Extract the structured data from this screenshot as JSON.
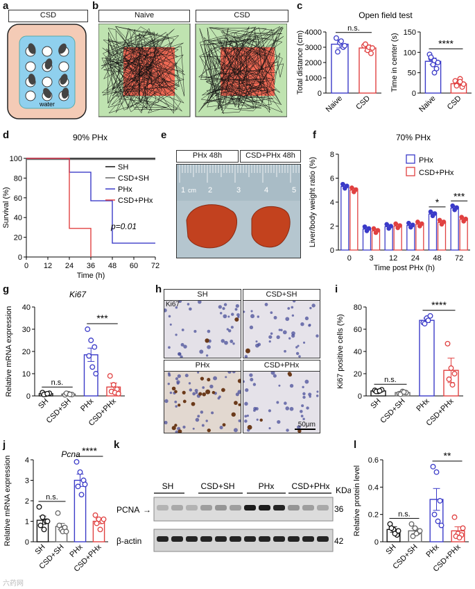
{
  "letters": {
    "a": "a",
    "b": "b",
    "c": "c",
    "d": "d",
    "e": "e",
    "f": "f",
    "g": "g",
    "h": "h",
    "i": "i",
    "j": "j",
    "k": "k",
    "l": "l"
  },
  "panel_a": {
    "header": "CSD",
    "water_label": "water"
  },
  "panel_b": {
    "headers": [
      "Naive",
      "CSD"
    ]
  },
  "panel_e": {
    "headers": [
      "PHx 48h",
      "CSD+PHx 48h"
    ],
    "ruler_labels": [
      "1",
      "2",
      "3",
      "4",
      "5"
    ],
    "ruler_unit": "cm"
  },
  "panel_h": {
    "headers": [
      "SH",
      "CSD+SH",
      "PHx",
      "CSD+PHx"
    ],
    "marker_label": "Ki67",
    "scale_bar": "50μm"
  },
  "panel_k": {
    "groups": [
      "SH",
      "CSD+SH",
      "PHx",
      "CSD+PHx"
    ],
    "rows": [
      "PCNA",
      "β-actin"
    ],
    "kda_label": "KDa",
    "kda_values": [
      "36",
      "42"
    ]
  },
  "watermark": "六药网",
  "chart_data": [
    {
      "id": "c_left",
      "type": "bar",
      "title": "Open field test",
      "categories": [
        "Naive",
        "CSD"
      ],
      "values": [
        3200,
        2950
      ],
      "errors": [
        250,
        200
      ],
      "points": [
        [
          3600,
          3300,
          3000,
          2700,
          3400,
          3100
        ],
        [
          3100,
          2800,
          2600,
          3200,
          3000,
          2950
        ]
      ],
      "ylabel": "Total distance (cm)",
      "ylim": [
        0,
        4000
      ],
      "yticks": [
        0,
        1000,
        2000,
        3000,
        4000
      ],
      "sig": "n.s."
    },
    {
      "id": "c_right",
      "type": "bar",
      "categories": [
        "Naive",
        "CSD"
      ],
      "values": [
        78,
        23
      ],
      "errors": [
        8,
        4
      ],
      "points": [
        [
          95,
          70,
          60,
          85,
          80,
          75,
          88,
          50
        ],
        [
          30,
          25,
          15,
          20,
          35,
          22,
          18,
          28
        ]
      ],
      "ylabel": "Time in center (s)",
      "ylim": [
        0,
        150
      ],
      "yticks": [
        0,
        50,
        100,
        150
      ],
      "sig": "****"
    },
    {
      "id": "d",
      "type": "line",
      "title": "90% PHx",
      "xlabel": "Time (h)",
      "ylabel": "Survival (%)",
      "xlim": [
        0,
        72
      ],
      "ylim": [
        0,
        100
      ],
      "xticks": [
        0,
        12,
        24,
        36,
        48,
        60,
        72
      ],
      "yticks": [
        0,
        20,
        40,
        60,
        80,
        100
      ],
      "series": [
        {
          "name": "SH",
          "color": "#111111",
          "steps": [
            [
              0,
              100
            ],
            [
              72,
              100
            ]
          ]
        },
        {
          "name": "CSD+SH",
          "color": "#666666",
          "steps": [
            [
              0,
              100
            ],
            [
              72,
              100
            ]
          ]
        },
        {
          "name": "PHx",
          "color": "#3a3ac8",
          "steps": [
            [
              0,
              100
            ],
            [
              24,
              100
            ],
            [
              24,
              86
            ],
            [
              36,
              86
            ],
            [
              36,
              57
            ],
            [
              48,
              57
            ],
            [
              48,
              14
            ],
            [
              72,
              14
            ]
          ]
        },
        {
          "name": "CSD+PHx",
          "color": "#e04040",
          "steps": [
            [
              0,
              100
            ],
            [
              24,
              100
            ],
            [
              24,
              29
            ],
            [
              36,
              29
            ],
            [
              36,
              0
            ]
          ]
        }
      ],
      "annotation": "p=0.01"
    },
    {
      "id": "f",
      "type": "bar",
      "title": "70% PHx",
      "xlabel": "Time post PHx (h)",
      "ylabel": "Liver/body weight ratio (%)",
      "ylim": [
        0,
        8
      ],
      "yticks": [
        0,
        2,
        4,
        6,
        8
      ],
      "categories": [
        "0",
        "3",
        "12",
        "24",
        "48",
        "72"
      ],
      "series": [
        {
          "name": "PHx",
          "color": "#3a3ac8",
          "values": [
            5.3,
            1.75,
            1.95,
            2.05,
            3.0,
            3.5
          ]
        },
        {
          "name": "CSD+PHx",
          "color": "#e04040",
          "values": [
            5.0,
            1.6,
            2.0,
            2.15,
            2.3,
            2.55
          ]
        }
      ],
      "sig": [
        {
          "index": 4,
          "label": "*"
        },
        {
          "index": 5,
          "label": "***"
        }
      ]
    },
    {
      "id": "g",
      "type": "bar",
      "title": "Ki67",
      "ylabel": "Relative mRNA expression",
      "ylim": [
        0,
        40
      ],
      "yticks": [
        0,
        10,
        20,
        30,
        40
      ],
      "categories": [
        "SH",
        "CSD+SH",
        "PHx",
        "CSD+PHx"
      ],
      "values": [
        1,
        0.8,
        18.5,
        4
      ],
      "errors": [
        0.3,
        0.3,
        3,
        1.8
      ],
      "colors": [
        "#111111",
        "#666666",
        "#3a3ac8",
        "#e04040"
      ],
      "points": [
        [
          1.5,
          0.8,
          1.2,
          0.6,
          1.0
        ],
        [
          0.5,
          1.0,
          0.6,
          1.2,
          0.7
        ],
        [
          30,
          25,
          22,
          18,
          13,
          10
        ],
        [
          9,
          5,
          3,
          2,
          1.5,
          1
        ]
      ],
      "sig": [
        {
          "pair": [
            0,
            1
          ],
          "label": "n.s."
        },
        {
          "pair": [
            2,
            3
          ],
          "label": "***"
        }
      ]
    },
    {
      "id": "i",
      "type": "bar",
      "ylabel": "Ki67 positive cells (%)",
      "ylim": [
        0,
        80
      ],
      "yticks": [
        0,
        20,
        40,
        60,
        80
      ],
      "categories": [
        "SH",
        "CSD+SH",
        "PHx",
        "CSD+PHx"
      ],
      "values": [
        4.5,
        3,
        68,
        23
      ],
      "errors": [
        0.8,
        0.8,
        2,
        11
      ],
      "colors": [
        "#111111",
        "#666666",
        "#3a3ac8",
        "#e04040"
      ],
      "points": [
        [
          5,
          4,
          5.5,
          4,
          4.5
        ],
        [
          2,
          4,
          3,
          1.5,
          3.5
        ],
        [
          66,
          70,
          72,
          65,
          68
        ],
        [
          47,
          25,
          20,
          15,
          10
        ]
      ],
      "sig": [
        {
          "pair": [
            0,
            1
          ],
          "label": "n.s."
        },
        {
          "pair": [
            2,
            3
          ],
          "label": "****"
        }
      ]
    },
    {
      "id": "j",
      "type": "bar",
      "title": "Pcna",
      "ylabel": "Relative mRNA expression",
      "ylim": [
        0,
        4
      ],
      "yticks": [
        0,
        1,
        2,
        3,
        4
      ],
      "categories": [
        "SH",
        "CSD+SH",
        "PHx",
        "CSD+PHx"
      ],
      "values": [
        1.05,
        0.75,
        3.0,
        1.0
      ],
      "errors": [
        0.2,
        0.15,
        0.3,
        0.12
      ],
      "colors": [
        "#111111",
        "#666666",
        "#3a3ac8",
        "#e04040"
      ],
      "points": [
        [
          1.7,
          1.2,
          1.0,
          0.8,
          0.6,
          1.0
        ],
        [
          1.4,
          0.6,
          0.7,
          0.8,
          0.5,
          0.5
        ],
        [
          3.9,
          3.4,
          3.0,
          2.7,
          2.3,
          2.8
        ],
        [
          1.3,
          1.1,
          1.0,
          0.9,
          0.6,
          1.1
        ]
      ],
      "sig": [
        {
          "pair": [
            0,
            1
          ],
          "label": "n.s."
        },
        {
          "pair": [
            2,
            3
          ],
          "label": "****"
        }
      ]
    },
    {
      "id": "l",
      "type": "bar",
      "ylabel": "Relative protein level",
      "ylim": [
        0,
        0.6
      ],
      "yticks": [
        0,
        0.2,
        0.4,
        0.6
      ],
      "categories": [
        "SH",
        "CSD+SH",
        "PHx",
        "CSD+PHx"
      ],
      "values": [
        0.09,
        0.08,
        0.31,
        0.08
      ],
      "errors": [
        0.02,
        0.02,
        0.08,
        0.03
      ],
      "colors": [
        "#111111",
        "#666666",
        "#3a3ac8",
        "#e04040"
      ],
      "points": [
        [
          0.13,
          0.09,
          0.05,
          0.1,
          0.06,
          0.08
        ],
        [
          0.13,
          0.1,
          0.07,
          0.04,
          0.06,
          0.08
        ],
        [
          0.55,
          0.51,
          0.3,
          0.2,
          0.15,
          0.12
        ],
        [
          0.18,
          0.06,
          0.05,
          0.04,
          0.03,
          0.1
        ]
      ],
      "sig": [
        {
          "pair": [
            0,
            1
          ],
          "label": "n.s."
        },
        {
          "pair": [
            2,
            3
          ],
          "label": "**"
        }
      ]
    }
  ]
}
